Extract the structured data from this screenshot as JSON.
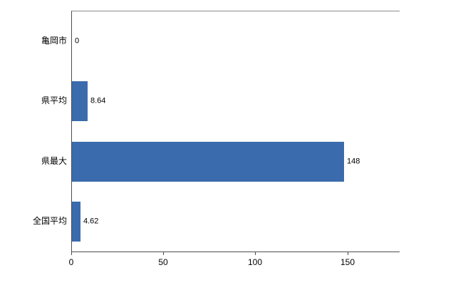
{
  "chart_data": {
    "type": "bar",
    "orientation": "horizontal",
    "title": "",
    "xlabel": "",
    "ylabel": "",
    "categories": [
      "亀岡市",
      "県平均",
      "県最大",
      "全国平均"
    ],
    "values": [
      0,
      8.64,
      148,
      4.62
    ],
    "value_labels": [
      "0",
      "8.64",
      "148",
      "4.62"
    ],
    "xlim": [
      0,
      178
    ],
    "x_ticks": [
      0,
      50,
      100,
      150
    ],
    "grid": false,
    "legend": "none",
    "bar_color": "#3a6bac",
    "axis_color": "#4d4d4d",
    "background_color": "#ffffff"
  }
}
